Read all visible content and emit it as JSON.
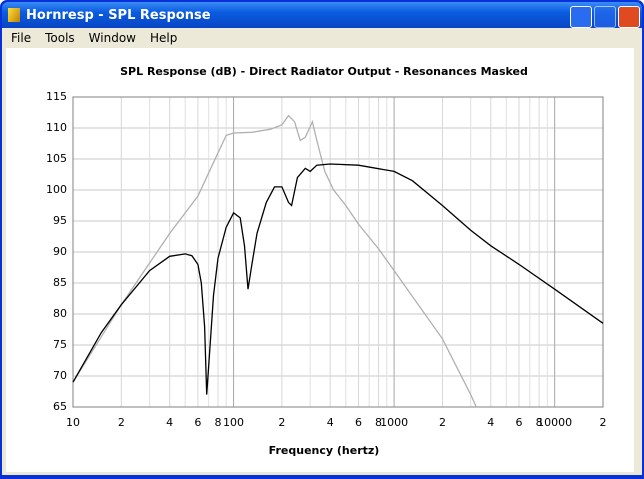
{
  "window": {
    "title": "Hornresp - SPL Response",
    "menu": [
      "File",
      "Tools",
      "Window",
      "Help"
    ]
  },
  "chart_data": {
    "type": "line",
    "title": "SPL Response (dB) - Direct Radiator Output - Resonances Masked",
    "x_label": "Frequency (hertz)",
    "xscale": "log",
    "grid": true,
    "xlim": [
      10,
      20000
    ],
    "ylim": [
      65,
      115
    ],
    "xticks": [
      10,
      {
        "value": 20,
        "label": "2"
      },
      {
        "value": 40,
        "label": "4"
      },
      {
        "value": 60,
        "label": "6"
      },
      {
        "value": 80,
        "label": "8"
      },
      100,
      {
        "value": 200,
        "label": "2"
      },
      {
        "value": 400,
        "label": "4"
      },
      {
        "value": 600,
        "label": "6"
      },
      {
        "value": 800,
        "label": "8"
      },
      1000,
      {
        "value": 2000,
        "label": "2"
      },
      {
        "value": 4000,
        "label": "4"
      },
      {
        "value": 6000,
        "label": "6"
      },
      {
        "value": 8000,
        "label": "8"
      },
      10000,
      {
        "value": 20000,
        "label": "2"
      }
    ],
    "xminorticks": [
      30,
      50,
      70,
      90,
      300,
      500,
      700,
      900,
      3000,
      5000,
      7000,
      9000
    ],
    "yticks": [
      65,
      70,
      75,
      80,
      85,
      90,
      95,
      100,
      105,
      110,
      115
    ],
    "series": [
      {
        "color": "#b0b0b0",
        "x": [
          10,
          20,
          40,
          60,
          80,
          90,
          100,
          130,
          170,
          200,
          220,
          240,
          260,
          280,
          310,
          330,
          370,
          420,
          500,
          600,
          800,
          1000,
          2000,
          3000,
          3250
        ],
        "values": [
          69,
          81.5,
          93,
          99,
          106,
          108.8,
          109.2,
          109.3,
          109.8,
          110.5,
          112,
          111,
          108,
          108.5,
          111,
          108,
          103,
          100,
          97.5,
          94.5,
          90.5,
          87,
          76,
          67,
          65
        ]
      },
      {
        "color": "#000000",
        "x": [
          10,
          15,
          20,
          30,
          40,
          50,
          55,
          60,
          63,
          66,
          68,
          71,
          75,
          80,
          90,
          100,
          110,
          117,
          123,
          130,
          140,
          160,
          180,
          200,
          220,
          230,
          250,
          280,
          300,
          330,
          400,
          600,
          1000,
          1300,
          2000,
          3000,
          4000,
          6000,
          10000,
          20000
        ],
        "values": [
          69,
          77,
          81.5,
          87,
          89.3,
          89.7,
          89.4,
          88,
          85,
          78,
          67,
          74,
          83,
          89,
          94,
          96.3,
          95.5,
          91,
          84,
          88,
          93,
          98,
          100.5,
          100.5,
          98,
          97.5,
          102,
          103.5,
          103,
          104,
          104.2,
          104,
          103,
          101.5,
          97.5,
          93.5,
          91,
          88,
          84,
          78.5
        ]
      }
    ]
  }
}
